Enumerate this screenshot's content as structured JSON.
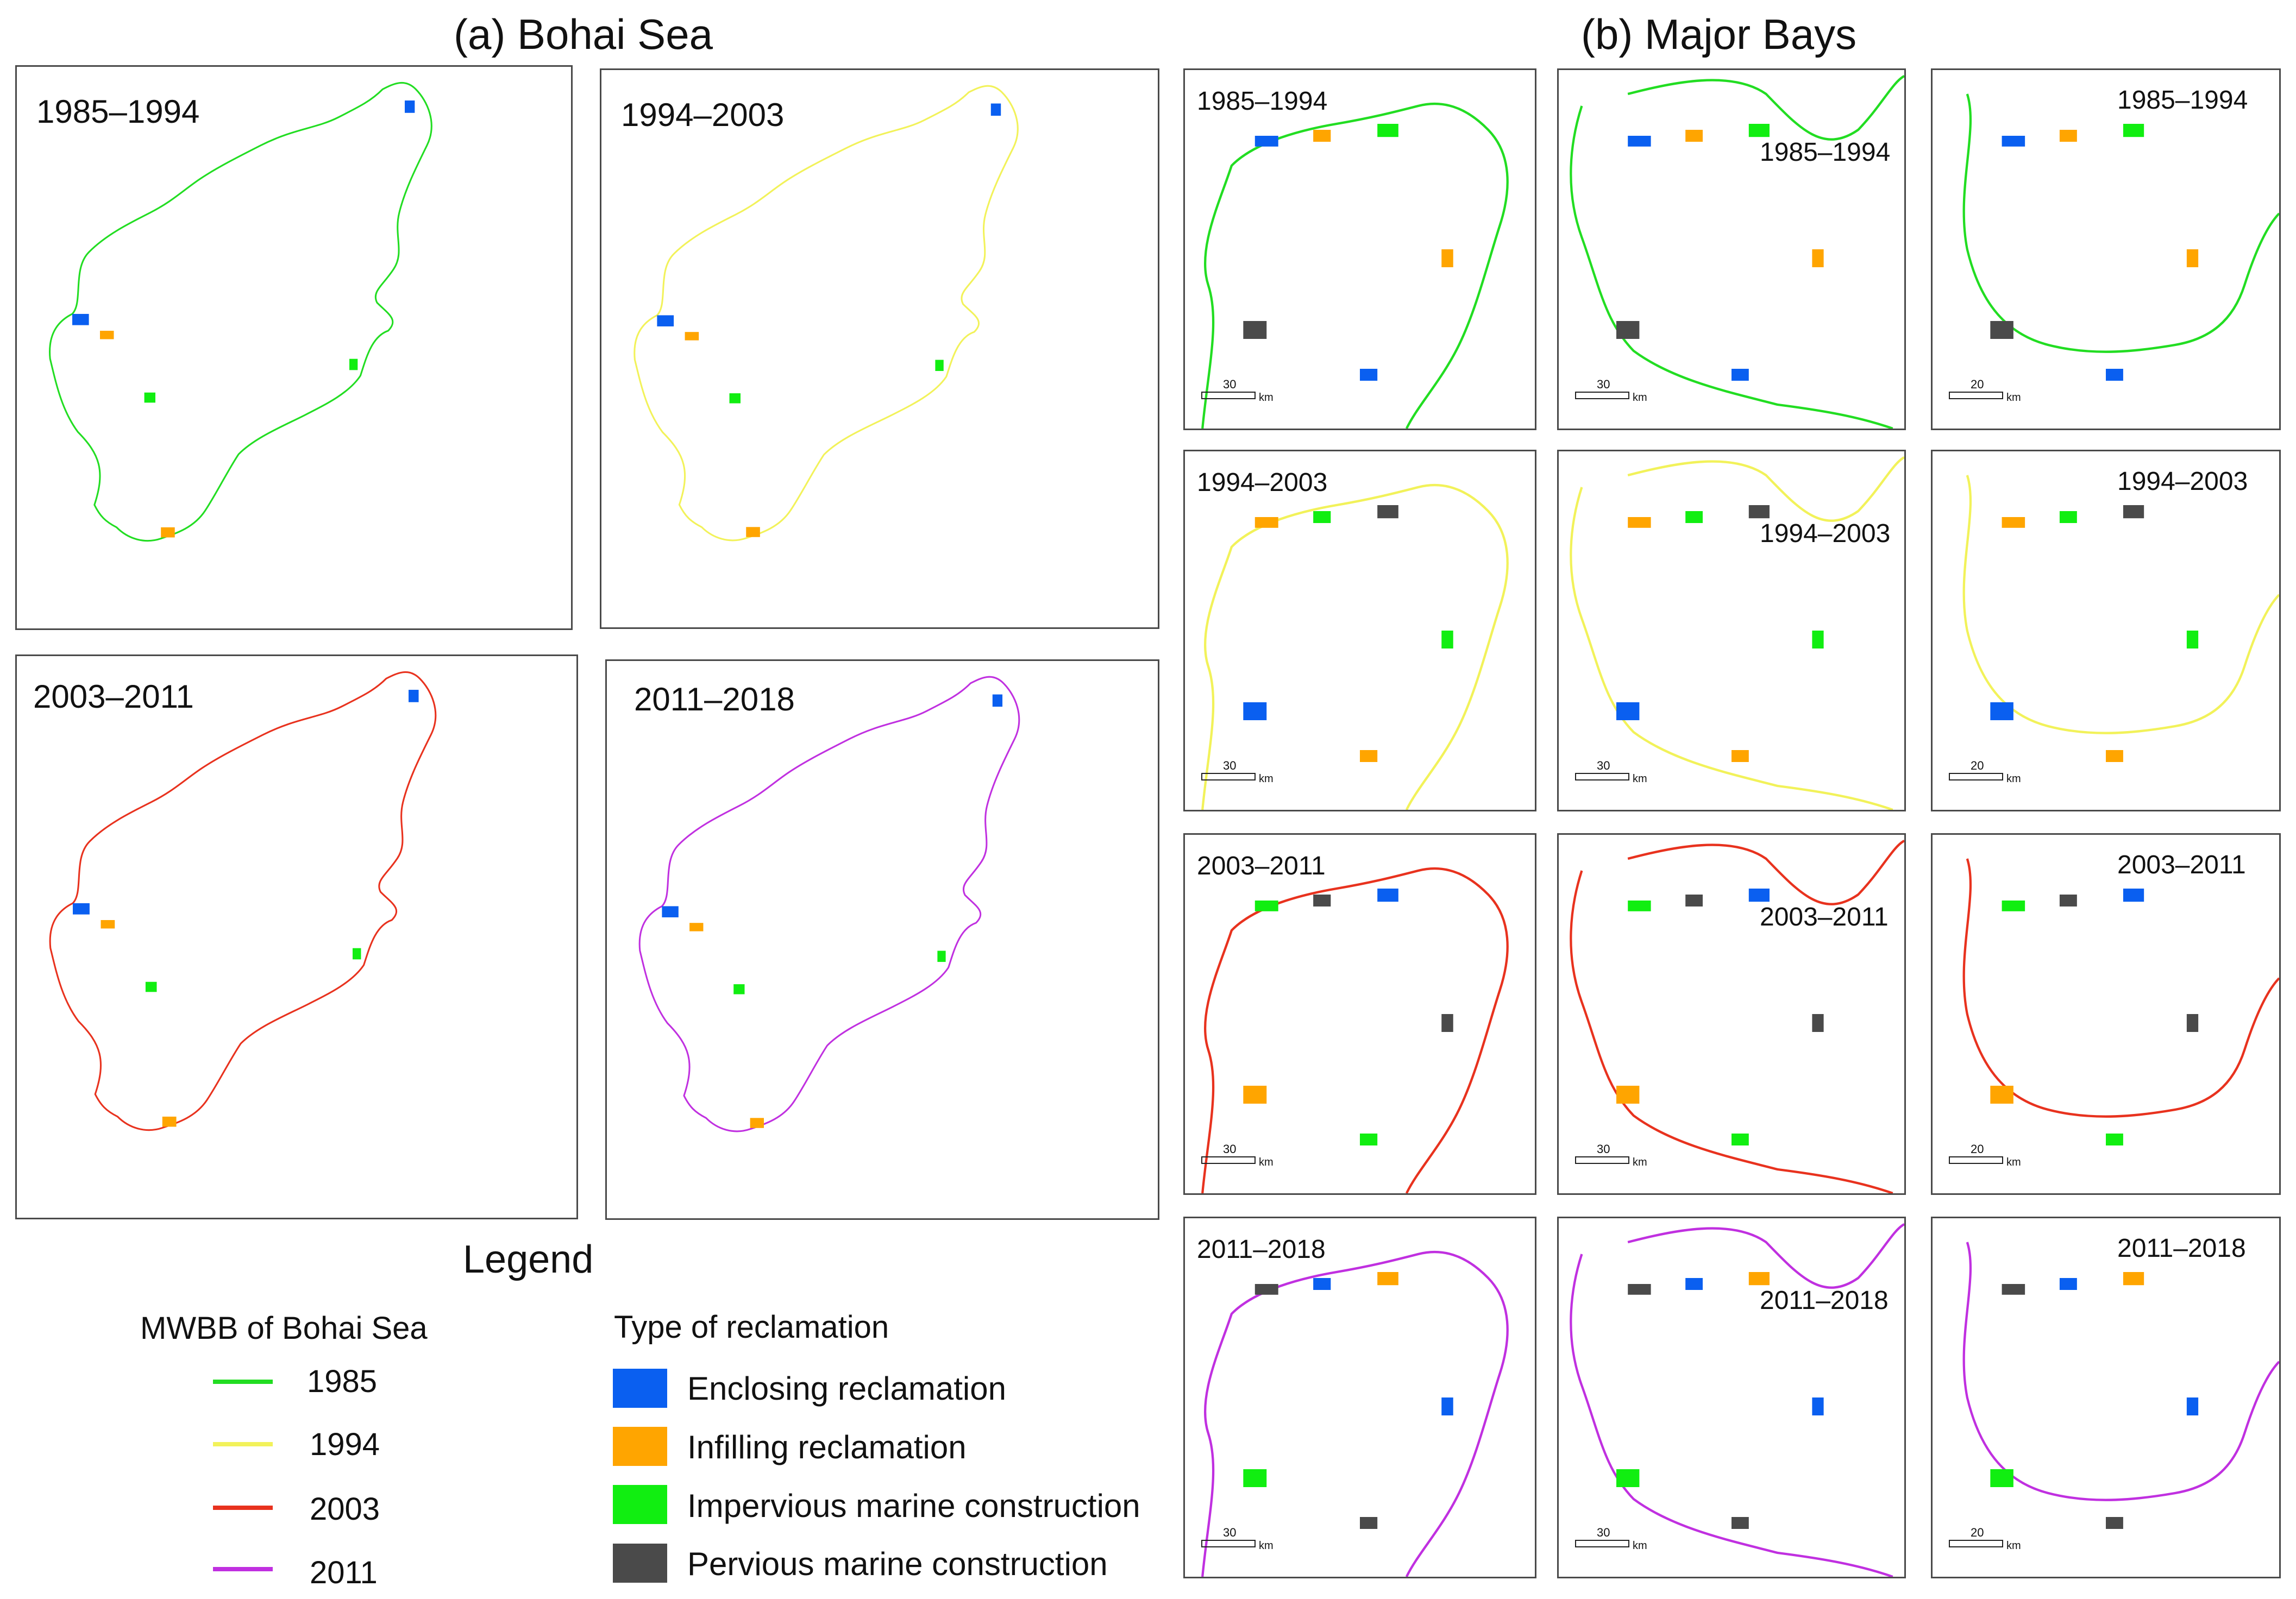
{
  "sections": {
    "bohai_title": "(a) Bohai Sea",
    "bays_title": "(b) Major Bays"
  },
  "panels_a": [
    "1985–1994",
    "1994–2003",
    "2003–2011",
    "2011–2018"
  ],
  "panels_b": [
    {
      "label": "1985–1994",
      "scale": "30",
      "unit": "km"
    },
    {
      "label": "1985–1994",
      "scale": "30",
      "unit": "km"
    },
    {
      "label": "1985–1994",
      "scale": "20",
      "unit": "km"
    },
    {
      "label": "1994–2003",
      "scale": "30",
      "unit": "km"
    },
    {
      "label": "1994–2003",
      "scale": "30",
      "unit": "km"
    },
    {
      "label": "1994–2003",
      "scale": "20",
      "unit": "km"
    },
    {
      "label": "2003–2011",
      "scale": "30",
      "unit": "km"
    },
    {
      "label": "2003–2011",
      "scale": "30",
      "unit": "km"
    },
    {
      "label": "2003–2011",
      "scale": "20",
      "unit": "km"
    },
    {
      "label": "2011–2018",
      "scale": "30",
      "unit": "km"
    },
    {
      "label": "2011–2018",
      "scale": "30",
      "unit": "km"
    },
    {
      "label": "2011–2018",
      "scale": "20",
      "unit": "km"
    }
  ],
  "legend": {
    "title": "Legend",
    "mwbb_title": "MWBB of Bohai Sea",
    "years": [
      {
        "year": "1985",
        "color": "#22dd22"
      },
      {
        "year": "1994",
        "color": "#f2f25a"
      },
      {
        "year": "2003",
        "color": "#e8321e"
      },
      {
        "year": "2011",
        "color": "#c030e0"
      }
    ],
    "type_title": "Type of reclamation",
    "types": [
      {
        "label": "Enclosing reclamation",
        "color": "#0a5ff0"
      },
      {
        "label": "Infilling reclamation",
        "color": "#ffa500"
      },
      {
        "label": "Impervious marine construction",
        "color": "#11ee11"
      },
      {
        "label": "Pervious marine construction",
        "color": "#4a4a4a"
      }
    ]
  }
}
